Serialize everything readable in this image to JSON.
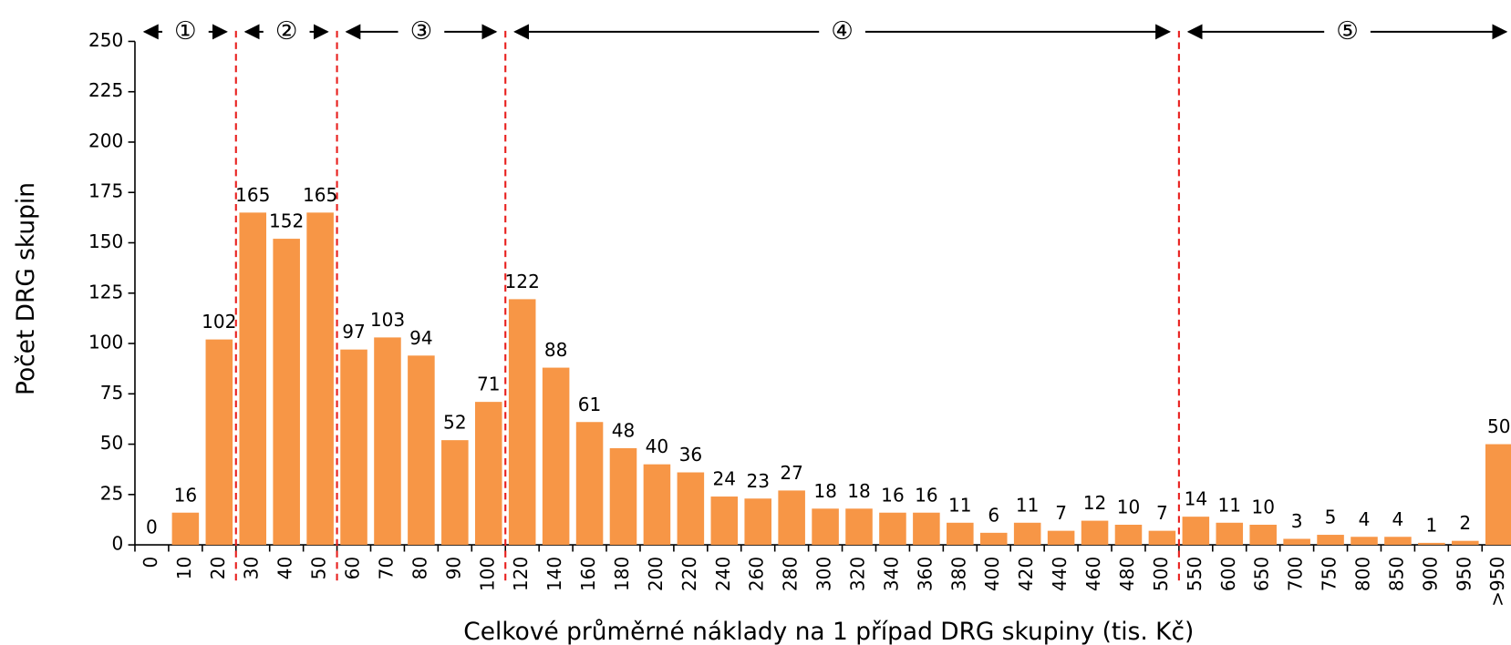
{
  "chart_data": {
    "type": "bar",
    "x_label": "Celkové průměrné náklady na 1 případ DRG skupiny (tis. Kč)",
    "y_label": "Počet DRG skupin",
    "annotations": [
      "①",
      "②",
      "③",
      "④",
      "⑤"
    ],
    "categories": [
      "0",
      "10",
      "20",
      "30",
      "40",
      "50",
      "60",
      "70",
      "80",
      "90",
      "100",
      "120",
      "140",
      "160",
      "180",
      "200",
      "220",
      "240",
      "260",
      "280",
      "300",
      "320",
      "340",
      "360",
      "380",
      "400",
      "420",
      "440",
      "460",
      "480",
      "500",
      "550",
      "600",
      "650",
      "700",
      "750",
      "800",
      "850",
      "900",
      "950",
      ">950"
    ],
    "values": [
      0,
      16,
      102,
      165,
      152,
      165,
      97,
      103,
      94,
      52,
      71,
      122,
      88,
      61,
      48,
      40,
      36,
      24,
      23,
      27,
      18,
      18,
      16,
      16,
      11,
      6,
      11,
      7,
      12,
      10,
      7,
      14,
      11,
      10,
      3,
      5,
      4,
      4,
      1,
      2,
      50
    ],
    "color": "#f79646",
    "ylim": [
      0,
      250
    ],
    "yticks": [
      0,
      25,
      50,
      75,
      100,
      125,
      150,
      175,
      200,
      225,
      250
    ]
  }
}
